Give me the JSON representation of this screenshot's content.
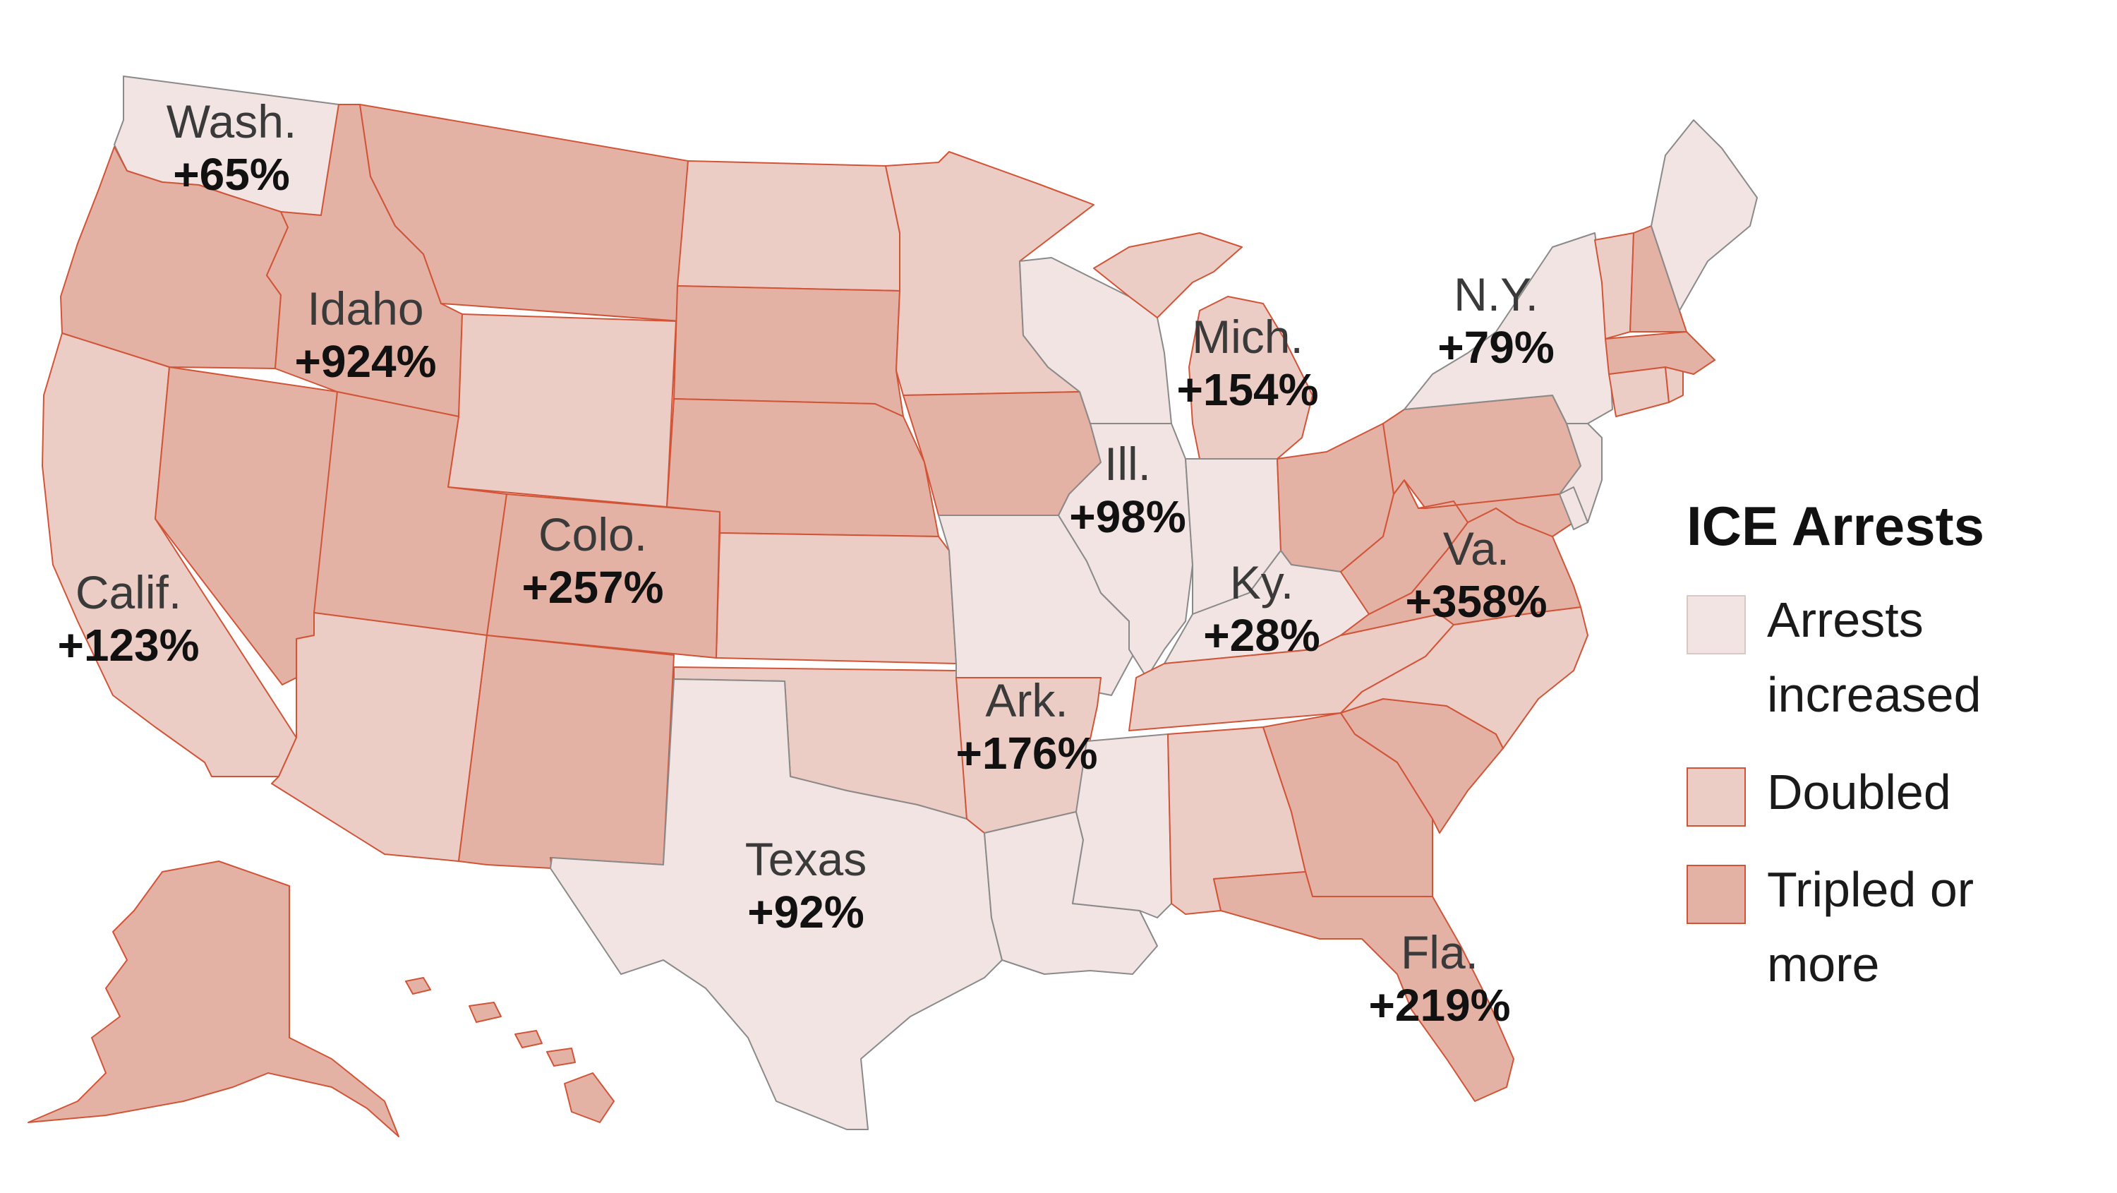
{
  "colors": {
    "increased": "#f1e4e2",
    "doubled": "#eccdc6",
    "tripled": "#e3b2a5",
    "edge": "#d15437"
  },
  "legend": {
    "title": "ICE Arrests",
    "items": [
      {
        "key": "increased",
        "label_line1": "Arrests",
        "label_line2": "increased"
      },
      {
        "key": "doubled",
        "label_line1": "Doubled",
        "label_line2": ""
      },
      {
        "key": "tripled",
        "label_line1": "Tripled or",
        "label_line2": "more"
      }
    ]
  },
  "states": [
    {
      "id": "wa",
      "level": "increased"
    },
    {
      "id": "or",
      "level": "tripled"
    },
    {
      "id": "ca",
      "level": "doubled"
    },
    {
      "id": "nv",
      "level": "tripled"
    },
    {
      "id": "id",
      "level": "tripled"
    },
    {
      "id": "mt",
      "level": "tripled"
    },
    {
      "id": "wy",
      "level": "doubled"
    },
    {
      "id": "ut",
      "level": "tripled"
    },
    {
      "id": "az",
      "level": "doubled"
    },
    {
      "id": "co",
      "level": "tripled"
    },
    {
      "id": "nm",
      "level": "tripled"
    },
    {
      "id": "nd",
      "level": "doubled"
    },
    {
      "id": "sd",
      "level": "tripled"
    },
    {
      "id": "ne",
      "level": "tripled"
    },
    {
      "id": "ks",
      "level": "doubled"
    },
    {
      "id": "ok",
      "level": "doubled"
    },
    {
      "id": "tx",
      "level": "increased"
    },
    {
      "id": "mn",
      "level": "doubled"
    },
    {
      "id": "ia",
      "level": "tripled"
    },
    {
      "id": "mo",
      "level": "increased"
    },
    {
      "id": "ar",
      "level": "doubled"
    },
    {
      "id": "la",
      "level": "increased"
    },
    {
      "id": "wi",
      "level": "increased"
    },
    {
      "id": "il",
      "level": "increased"
    },
    {
      "id": "mi",
      "level": "doubled"
    },
    {
      "id": "in",
      "level": "increased"
    },
    {
      "id": "oh",
      "level": "tripled"
    },
    {
      "id": "ky",
      "level": "increased"
    },
    {
      "id": "tn",
      "level": "doubled"
    },
    {
      "id": "ms",
      "level": "increased"
    },
    {
      "id": "al",
      "level": "doubled"
    },
    {
      "id": "ga",
      "level": "tripled"
    },
    {
      "id": "fl",
      "level": "tripled"
    },
    {
      "id": "sc",
      "level": "tripled"
    },
    {
      "id": "nc",
      "level": "doubled"
    },
    {
      "id": "va",
      "level": "tripled"
    },
    {
      "id": "wv",
      "level": "tripled"
    },
    {
      "id": "pa",
      "level": "tripled"
    },
    {
      "id": "ny",
      "level": "increased"
    },
    {
      "id": "nj",
      "level": "increased"
    },
    {
      "id": "md",
      "level": "tripled"
    },
    {
      "id": "de",
      "level": "increased"
    },
    {
      "id": "ct",
      "level": "doubled"
    },
    {
      "id": "ri",
      "level": "doubled"
    },
    {
      "id": "ma",
      "level": "tripled"
    },
    {
      "id": "vt",
      "level": "doubled"
    },
    {
      "id": "nh",
      "level": "tripled"
    },
    {
      "id": "me",
      "level": "increased"
    },
    {
      "id": "ak",
      "level": "tripled"
    },
    {
      "id": "hi",
      "level": "tripled"
    }
  ],
  "labels": [
    {
      "id": "wa",
      "name": "Wash.",
      "value": "+65%"
    },
    {
      "id": "id",
      "name": "Idaho",
      "value": "+924%"
    },
    {
      "id": "ca",
      "name": "Calif.",
      "value": "+123%"
    },
    {
      "id": "co",
      "name": "Colo.",
      "value": "+257%"
    },
    {
      "id": "tx",
      "name": "Texas",
      "value": "+92%"
    },
    {
      "id": "ar",
      "name": "Ark.",
      "value": "+176%"
    },
    {
      "id": "il",
      "name": "Ill.",
      "value": "+98%"
    },
    {
      "id": "mi",
      "name": "Mich.",
      "value": "+154%"
    },
    {
      "id": "ky",
      "name": "Ky.",
      "value": "+28%"
    },
    {
      "id": "va",
      "name": "Va.",
      "value": "+358%"
    },
    {
      "id": "ny",
      "name": "N.Y.",
      "value": "+79%"
    },
    {
      "id": "fl",
      "name": "Fla.",
      "value": "+219%"
    }
  ]
}
